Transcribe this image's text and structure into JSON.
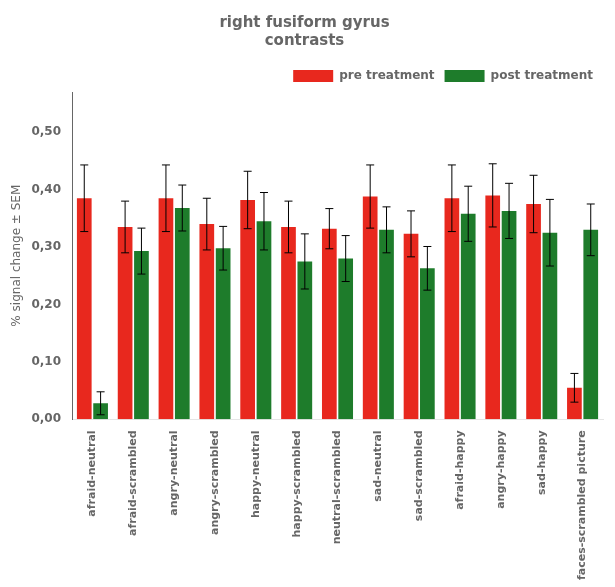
{
  "chart_data": {
    "type": "bar",
    "title": "right fusiform gyrus\ncontrasts",
    "ylabel": "% signal change ± SEM",
    "categories": [
      "afraid-neutral",
      "afraid-scrambled",
      "angry-neutral",
      "angry-scrambled",
      "happy-neutral",
      "happy-scrambled",
      "neutral-scrambled",
      "sad-neutral",
      "sad-scrambled",
      "afraid-happy",
      "angry-happy",
      "sad-happy",
      "faces-scrambled picture"
    ],
    "series": [
      {
        "name": "pre treatment",
        "color": "#E8281E",
        "values": [
          0.385,
          0.335,
          0.385,
          0.34,
          0.382,
          0.335,
          0.332,
          0.388,
          0.323,
          0.385,
          0.39,
          0.375,
          0.055
        ],
        "errors": [
          0.058,
          0.045,
          0.058,
          0.045,
          0.05,
          0.045,
          0.035,
          0.055,
          0.04,
          0.058,
          0.055,
          0.05,
          0.025
        ]
      },
      {
        "name": "post treatment",
        "color": "#1E7C2B",
        "values": [
          0.028,
          0.293,
          0.368,
          0.298,
          0.345,
          0.275,
          0.28,
          0.33,
          0.263,
          0.358,
          0.363,
          0.325,
          0.33
        ],
        "errors": [
          0.02,
          0.04,
          0.04,
          0.038,
          0.05,
          0.048,
          0.04,
          0.04,
          0.038,
          0.048,
          0.048,
          0.058,
          0.045
        ]
      }
    ],
    "ylim": [
      0.0,
      0.57
    ],
    "yticks": [
      {
        "value": 0.0,
        "label": "0,00"
      },
      {
        "value": 0.1,
        "label": "0,10"
      },
      {
        "value": 0.2,
        "label": "0,20"
      },
      {
        "value": 0.3,
        "label": "0,30"
      },
      {
        "value": 0.4,
        "label": "0,40"
      },
      {
        "value": 0.5,
        "label": "0,50"
      }
    ],
    "grid": false,
    "legend": "upper right"
  }
}
